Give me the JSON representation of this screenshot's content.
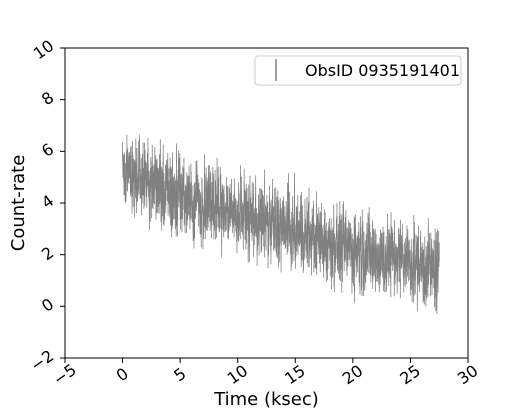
{
  "chart_data": {
    "type": "scatter",
    "xlabel": "Time (ksec)",
    "ylabel": "Count-rate",
    "xlim": [
      -5,
      30
    ],
    "ylim": [
      -2,
      10
    ],
    "xticks": [
      "−5",
      "0",
      "5",
      "10",
      "15",
      "20",
      "25",
      "30"
    ],
    "yticks": [
      "−2",
      "0",
      "2",
      "4",
      "6",
      "8",
      "10"
    ],
    "grid": false,
    "legend_placement": "top-right",
    "series": [
      {
        "name": "ObsID 0935191401",
        "color": "#808080",
        "style": "errorbar",
        "x_start": 0,
        "x_end": 27.5,
        "trend_x": [
          0,
          2,
          5,
          8,
          10,
          12,
          15,
          18,
          20,
          22,
          25,
          27.5
        ],
        "trend_y": [
          5.2,
          4.9,
          4.2,
          3.9,
          3.6,
          3.3,
          2.9,
          2.5,
          2.2,
          2.0,
          1.7,
          1.4
        ],
        "scatter": 0.7,
        "error": 0.4
      }
    ]
  }
}
